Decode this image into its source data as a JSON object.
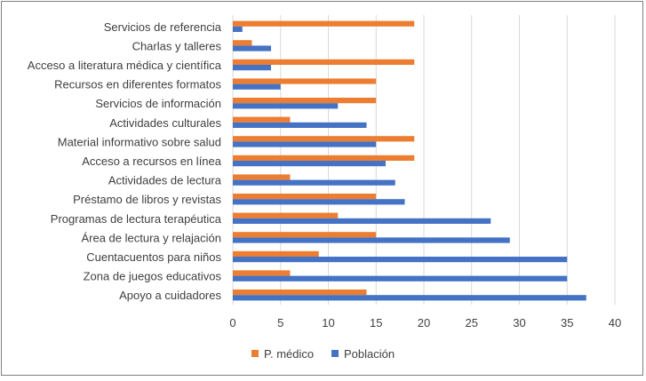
{
  "chart_data": {
    "type": "bar",
    "orientation": "horizontal",
    "categories": [
      "Servicios de referencia",
      "Charlas y talleres",
      "Acceso a literatura médica y científica",
      "Recursos en diferentes formatos",
      "Servicios de información",
      "Actividades culturales",
      "Material informativo sobre salud",
      "Acceso a recursos en línea",
      "Actividades de lectura",
      "Préstamo de libros y revistas",
      "Programas de lectura terapéutica",
      "Área de lectura y relajación",
      "Cuentacuentos para niños",
      "Zona de juegos educativos",
      "Apoyo a cuidadores"
    ],
    "series": [
      {
        "name": "P. médico",
        "color": "#ed7d31",
        "values": [
          19,
          2,
          19,
          15,
          15,
          6,
          19,
          19,
          6,
          15,
          11,
          15,
          9,
          6,
          14
        ]
      },
      {
        "name": "Población",
        "color": "#4472c4",
        "values": [
          1,
          4,
          4,
          5,
          11,
          14,
          15,
          16,
          17,
          18,
          27,
          29,
          35,
          35,
          37
        ]
      }
    ],
    "xlim": [
      0,
      40
    ],
    "xticks": [
      0,
      5,
      10,
      15,
      20,
      25,
      30,
      35,
      40
    ],
    "title": "",
    "xlabel": "",
    "ylabel": "",
    "grid": "vertical",
    "legend_position": "bottom"
  }
}
